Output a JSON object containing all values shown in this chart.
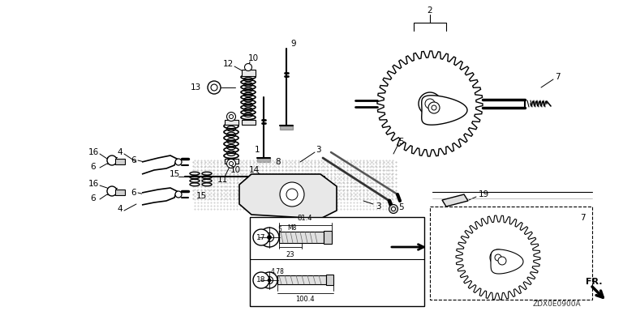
{
  "fig_width": 7.68,
  "fig_height": 3.84,
  "dpi": 100,
  "bg": "#ffffff",
  "watermark": "ZDX0E0900A",
  "fr_text": "FR.",
  "text_color": "#111111"
}
